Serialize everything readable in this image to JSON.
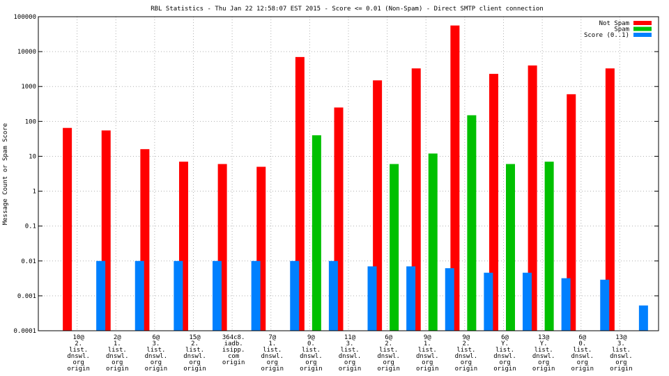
{
  "chart_data": {
    "type": "bar",
    "title": "RBL Statistics - Thu Jan 22 12:58:07 EST 2015 - Score <= 0.01 (Non-Spam) - Direct SMTP client connection",
    "xlabel": "",
    "ylabel": "Message Count or Spam Score",
    "yscale": "log",
    "ylim": [
      0.0001,
      100000
    ],
    "grid": true,
    "legend_position": "top-right",
    "yticks": [
      "0.0001",
      "0.001",
      "0.01",
      "0.1",
      "1",
      "10",
      "100",
      "1000",
      "10000",
      "100000"
    ],
    "categories": [
      [
        "10@",
        "2.",
        "list.",
        "dnswl.",
        "org",
        "origin"
      ],
      [
        "2@",
        "1.",
        "list.",
        "dnswl.",
        "org",
        "origin"
      ],
      [
        "6@",
        "3.",
        "list.",
        "dnswl.",
        "org",
        "origin"
      ],
      [
        "15@",
        "2.",
        "list.",
        "dnswl.",
        "org",
        "origin"
      ],
      [
        "364c8.",
        "iadb.",
        "isipp.",
        "com",
        "origin"
      ],
      [
        "7@",
        "1.",
        "list.",
        "dnswl.",
        "org",
        "origin"
      ],
      [
        "9@",
        "0.",
        "list.",
        "dnswl.",
        "org",
        "origin"
      ],
      [
        "11@",
        "3.",
        "list.",
        "dnswl.",
        "org",
        "origin"
      ],
      [
        "6@",
        "2.",
        "list.",
        "dnswl.",
        "org",
        "origin"
      ],
      [
        "9@",
        "1.",
        "list.",
        "dnswl.",
        "org",
        "origin"
      ],
      [
        "9@",
        "2.",
        "list.",
        "dnswl.",
        "org",
        "origin"
      ],
      [
        "6@",
        "Y.",
        "list.",
        "dnswl.",
        "org",
        "origin"
      ],
      [
        "13@",
        "Y.",
        "list.",
        "dnswl.",
        "org",
        "origin"
      ],
      [
        "6@",
        "0.",
        "list.",
        "dnswl.",
        "org",
        "origin"
      ],
      [
        "13@",
        "3.",
        "list.",
        "dnswl.",
        "org",
        "origin"
      ]
    ],
    "series": [
      {
        "name": "Not Spam",
        "color": "#ff0000",
        "values": [
          65,
          55,
          16,
          7,
          6,
          5,
          7000,
          250,
          1500,
          3300,
          56000,
          2300,
          4000,
          600,
          3300
        ]
      },
      {
        "name": "Spam",
        "color": "#00c000",
        "values": [
          null,
          null,
          null,
          null,
          null,
          null,
          40,
          null,
          6,
          12,
          150,
          6,
          7,
          null,
          null
        ]
      },
      {
        "name": "Score (0..1)",
        "color": "#0080ff",
        "values": [
          0.01,
          0.01,
          0.01,
          0.01,
          0.01,
          0.01,
          0.01,
          0.007,
          0.007,
          0.0062,
          0.0046,
          0.0046,
          0.0032,
          0.0029,
          0.00053
        ]
      }
    ]
  }
}
